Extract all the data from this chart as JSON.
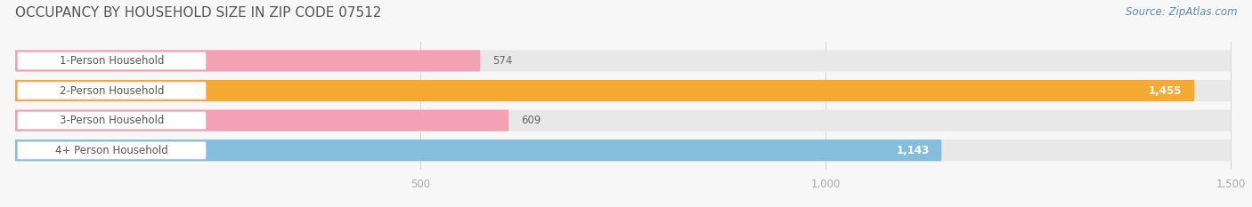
{
  "title": "OCCUPANCY BY HOUSEHOLD SIZE IN ZIP CODE 07512",
  "source": "Source: ZipAtlas.com",
  "categories": [
    "1-Person Household",
    "2-Person Household",
    "3-Person Household",
    "4+ Person Household"
  ],
  "values": [
    574,
    1455,
    609,
    1143
  ],
  "bar_colors": [
    "#f4a0b5",
    "#f5a832",
    "#f4a0b5",
    "#85bedd"
  ],
  "bar_bg_color": "#e8e8e8",
  "xlim_max": 1500,
  "xticks": [
    500,
    1000,
    1500
  ],
  "xtick_labels": [
    "500",
    "1,000",
    "1,500"
  ],
  "title_fontsize": 11,
  "label_fontsize": 8.5,
  "value_fontsize": 8.5,
  "source_fontsize": 8.5,
  "background_color": "#f7f7f7",
  "bar_height": 0.72,
  "label_bg_color": "#ffffff",
  "title_color": "#555555",
  "tick_color": "#aaaaaa",
  "source_color": "#6688aa",
  "value_color_dark": "#666666",
  "value_color_light": "#ffffff"
}
